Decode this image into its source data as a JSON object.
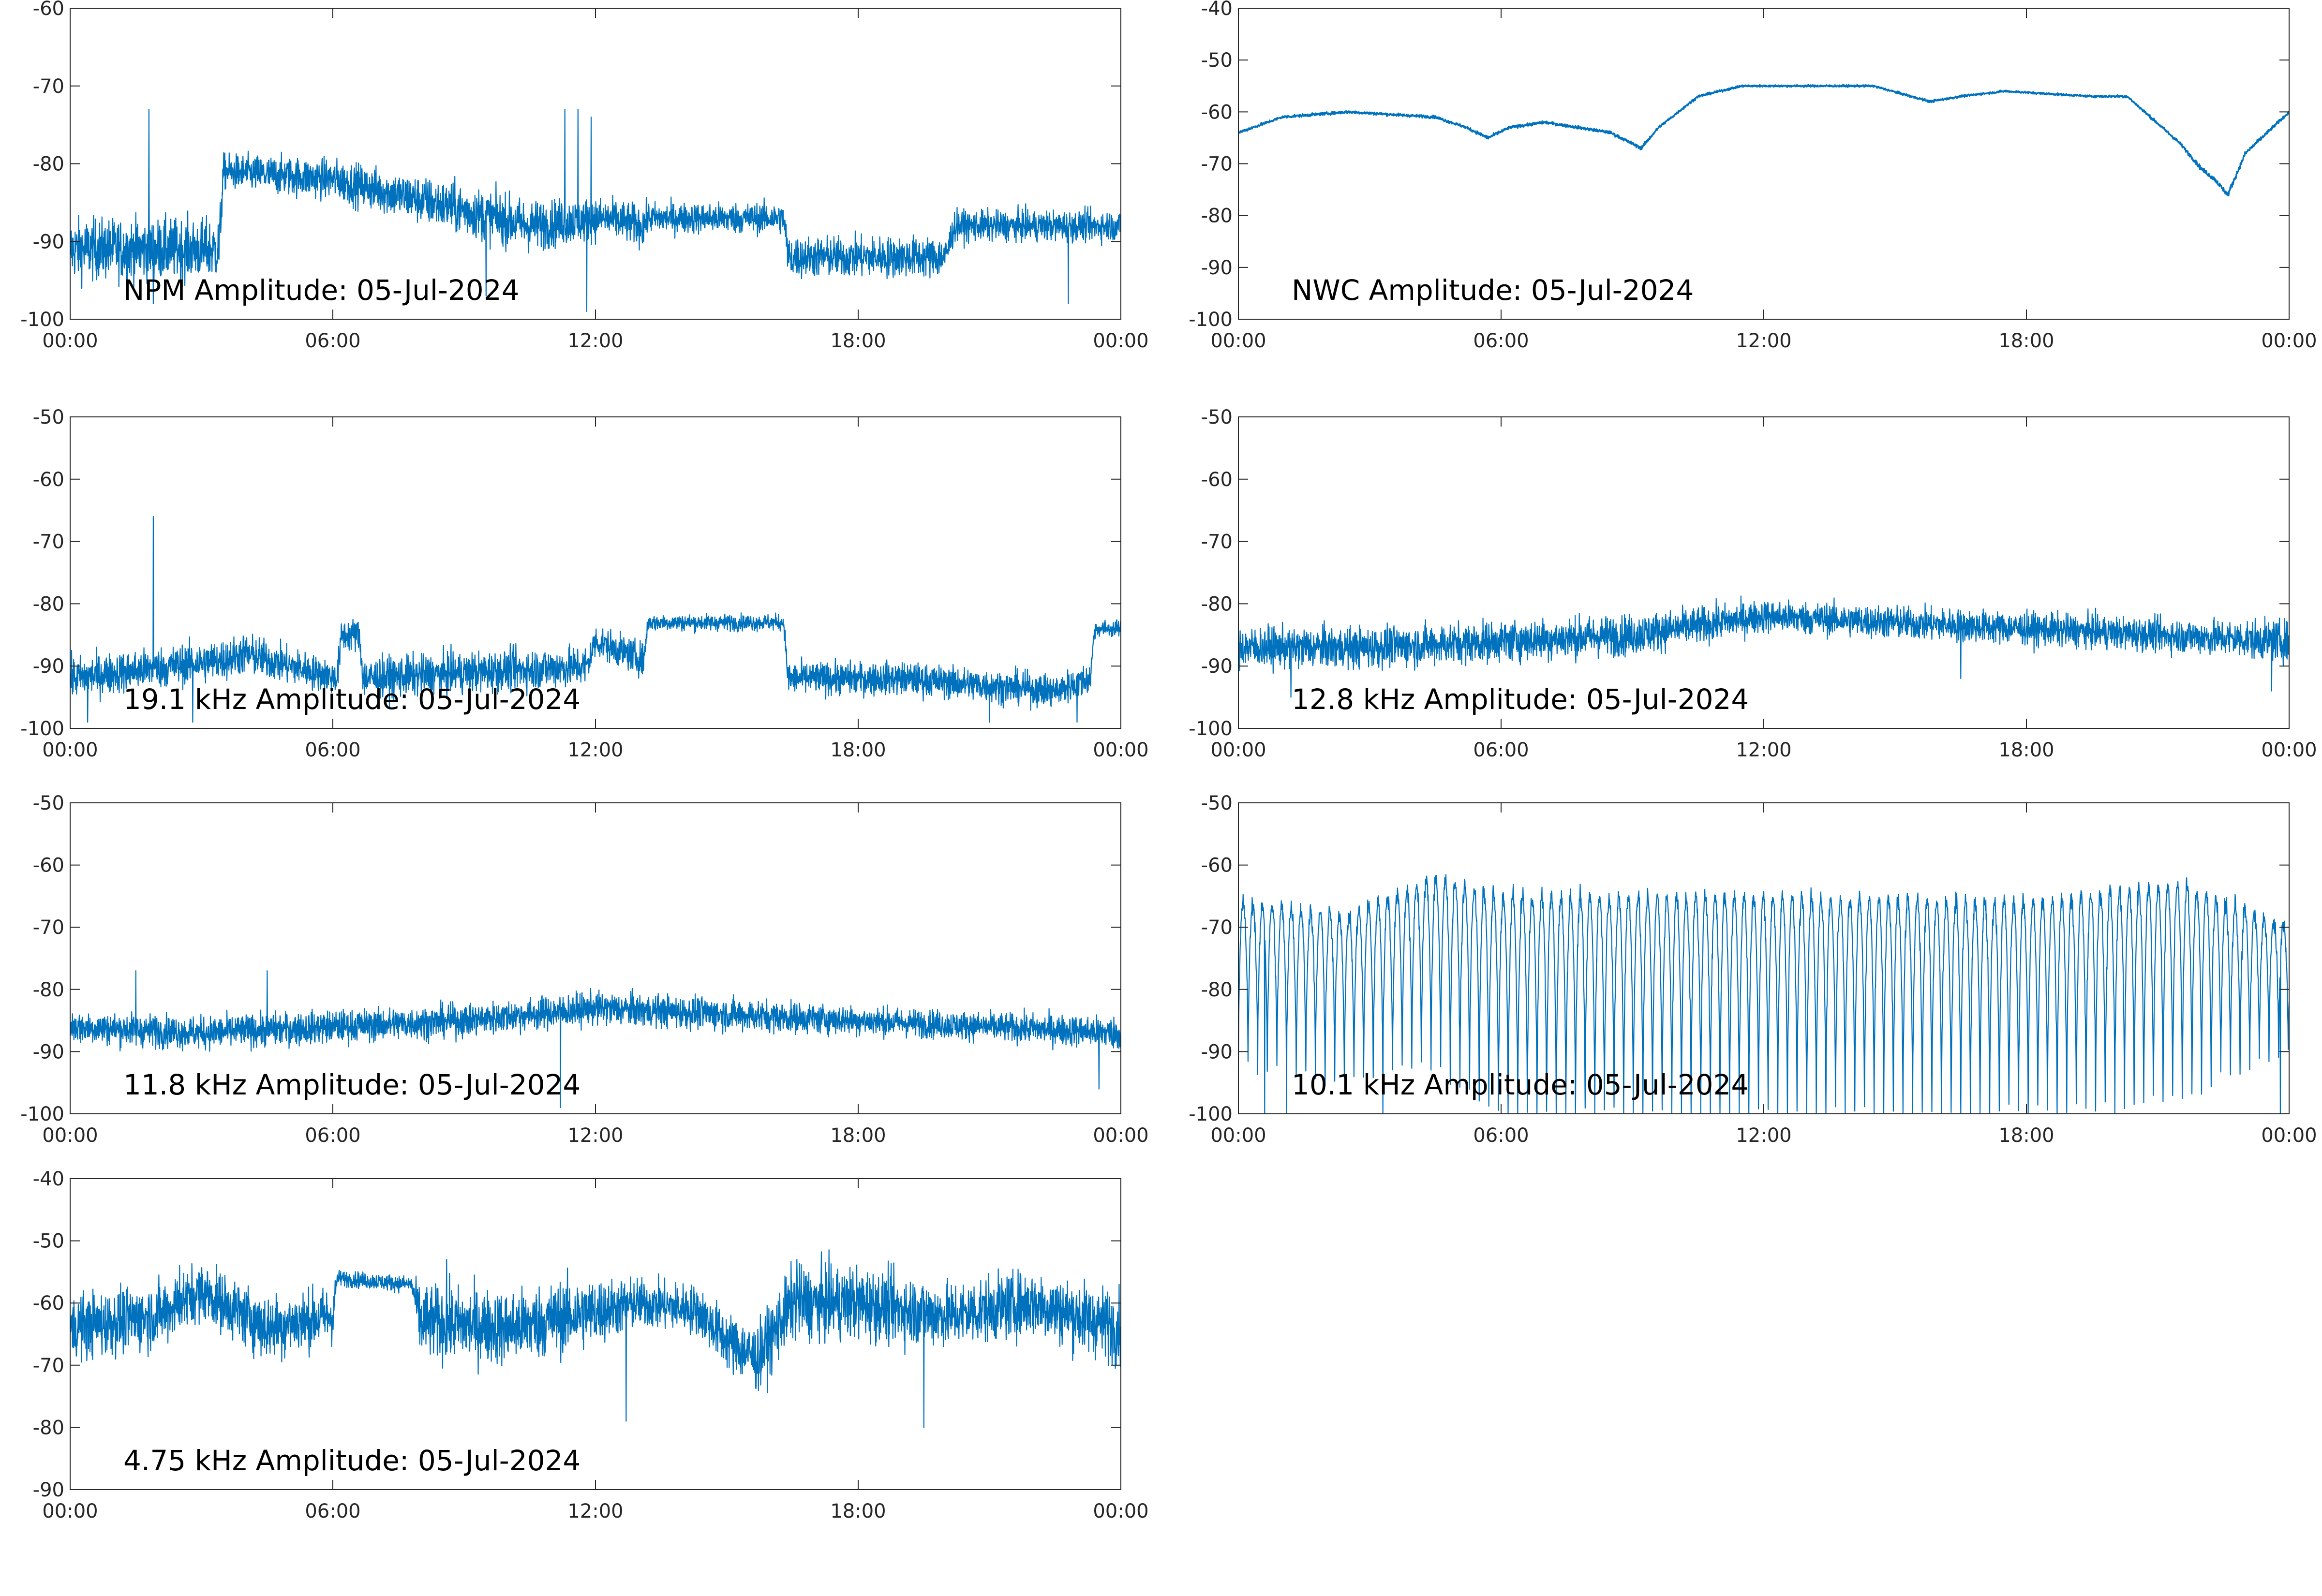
{
  "figure": {
    "background": "#ffffff",
    "line_color": "#0072BD",
    "axis_color": "#262626"
  },
  "chart_data": [
    {
      "type": "line",
      "title": "NPM Amplitude: 05-Jul-2024",
      "xlabel": "",
      "ylabel": "",
      "xlim": [
        0,
        24
      ],
      "xticks": [
        0,
        6,
        12,
        18,
        24
      ],
      "xtick_labels": [
        "00:00",
        "06:00",
        "12:00",
        "18:00",
        "00:00"
      ],
      "ylim": [
        -100,
        -60
      ],
      "yticks": [
        -100,
        -90,
        -80,
        -70,
        -60
      ],
      "ytick_labels": [
        "-100",
        "-90",
        "-80",
        "-70",
        "-60"
      ],
      "grid": false,
      "legend": "none",
      "series": [
        {
          "style": "noisy",
          "x": [
            0,
            1.5,
            3.4,
            3.5,
            6,
            9,
            10.5,
            12.2,
            13.1,
            13.2,
            16.3,
            16.4,
            20,
            20.2,
            24
          ],
          "y": [
            -91,
            -91,
            -91,
            -81,
            -82,
            -86,
            -88,
            -87,
            -88,
            -87,
            -87,
            -92,
            -92,
            -88,
            -88
          ],
          "band": [
            6,
            6,
            6,
            3.5,
            4,
            5,
            5,
            4,
            4,
            3,
            3,
            4,
            4,
            3,
            3
          ],
          "spikes": [
            [
              1.8,
              -73
            ],
            [
              11.3,
              -73
            ],
            [
              11.6,
              -73
            ],
            [
              11.9,
              -74
            ],
            [
              1.9,
              -98
            ],
            [
              9.5,
              -97
            ],
            [
              11.8,
              -99
            ],
            [
              22.8,
              -98
            ]
          ]
        }
      ]
    },
    {
      "type": "line",
      "title": "NWC Amplitude: 05-Jul-2024",
      "xlabel": "",
      "ylabel": "",
      "xlim": [
        0,
        24
      ],
      "xticks": [
        0,
        6,
        12,
        18,
        24
      ],
      "xtick_labels": [
        "00:00",
        "06:00",
        "12:00",
        "18:00",
        "00:00"
      ],
      "ylim": [
        -100,
        -40
      ],
      "yticks": [
        -100,
        -90,
        -80,
        -70,
        -60,
        -50,
        -40
      ],
      "ytick_labels": [
        "-100",
        "-90",
        "-80",
        "-70",
        "-60",
        "-50",
        "-40"
      ],
      "grid": false,
      "legend": "none",
      "series": [
        {
          "style": "smooth",
          "x": [
            0,
            1,
            2.5,
            4.5,
            5.2,
            5.7,
            6.2,
            7,
            8.5,
            9.2,
            9.6,
            10.5,
            11.5,
            13,
            14.5,
            15.8,
            16.5,
            17.5,
            19.5,
            20.3,
            21.5,
            22,
            22.3,
            22.6,
            23,
            24
          ],
          "y": [
            -64,
            -61,
            -60,
            -61,
            -63,
            -65,
            -63,
            -62,
            -64,
            -67,
            -63,
            -57,
            -55,
            -55,
            -55,
            -58,
            -57,
            -56,
            -57,
            -57,
            -66,
            -71,
            -73,
            -76,
            -68,
            -60
          ],
          "band": [
            0.8,
            0.8,
            0.8,
            0.8,
            0.8,
            1,
            0.8,
            0.8,
            0.8,
            1,
            0.8,
            0.7,
            0.6,
            0.6,
            0.6,
            0.7,
            0.6,
            0.6,
            0.6,
            0.7,
            1,
            1.2,
            1.2,
            1.5,
            1.2,
            0.8
          ],
          "spikes": []
        }
      ]
    },
    {
      "type": "line",
      "title": "19.1 kHz Amplitude: 05-Jul-2024",
      "xlabel": "",
      "ylabel": "",
      "xlim": [
        0,
        24
      ],
      "xticks": [
        0,
        6,
        12,
        18,
        24
      ],
      "xtick_labels": [
        "00:00",
        "06:00",
        "12:00",
        "18:00",
        "00:00"
      ],
      "ylim": [
        -100,
        -50
      ],
      "yticks": [
        -100,
        -90,
        -80,
        -70,
        -60,
        -50
      ],
      "ytick_labels": [
        "-100",
        "-90",
        "-80",
        "-70",
        "-60",
        "-50"
      ],
      "grid": false,
      "legend": "none",
      "series": [
        {
          "style": "noisy",
          "x": [
            0,
            3.5,
            4,
            6.1,
            6.2,
            6.6,
            6.7,
            11.8,
            12,
            13.1,
            13.2,
            16.3,
            16.4,
            19,
            22.5,
            23.3,
            23.4,
            24
          ],
          "y": [
            -92,
            -89,
            -88,
            -92,
            -85,
            -85,
            -92,
            -90,
            -86,
            -89,
            -83,
            -83,
            -92,
            -92,
            -94,
            -92,
            -84,
            -84
          ],
          "band": [
            5,
            5,
            5,
            4,
            4,
            4,
            5,
            5,
            4,
            4,
            2,
            2,
            4,
            4,
            4,
            4,
            2,
            2
          ],
          "spikes": [
            [
              1.9,
              -66
            ],
            [
              0.4,
              -99
            ],
            [
              2.8,
              -99
            ],
            [
              21,
              -99
            ],
            [
              23,
              -99
            ]
          ]
        }
      ]
    },
    {
      "type": "line",
      "title": "12.8 kHz Amplitude: 05-Jul-2024",
      "xlabel": "",
      "ylabel": "",
      "xlim": [
        0,
        24
      ],
      "xticks": [
        0,
        6,
        12,
        18,
        24
      ],
      "xtick_labels": [
        "00:00",
        "06:00",
        "12:00",
        "18:00",
        "00:00"
      ],
      "ylim": [
        -100,
        -50
      ],
      "yticks": [
        -100,
        -90,
        -80,
        -70,
        -60,
        -50
      ],
      "ytick_labels": [
        "-100",
        "-90",
        "-80",
        "-70",
        "-60",
        "-50"
      ],
      "grid": false,
      "legend": "none",
      "series": [
        {
          "style": "noisy",
          "x": [
            0,
            3,
            6,
            9,
            12,
            15,
            18,
            21,
            24
          ],
          "y": [
            -87,
            -87,
            -86,
            -85,
            -82,
            -83,
            -84,
            -85,
            -86
          ],
          "band": [
            5,
            5,
            5,
            5,
            4,
            4,
            4,
            4,
            5
          ],
          "spikes": [
            [
              1.2,
              -95
            ],
            [
              16.5,
              -92
            ],
            [
              23.6,
              -94
            ]
          ]
        }
      ]
    },
    {
      "type": "line",
      "title": "11.8 kHz Amplitude: 05-Jul-2024",
      "xlabel": "",
      "ylabel": "",
      "xlim": [
        0,
        24
      ],
      "xticks": [
        0,
        6,
        12,
        18,
        24
      ],
      "xtick_labels": [
        "00:00",
        "06:00",
        "12:00",
        "18:00",
        "00:00"
      ],
      "ylim": [
        -100,
        -50
      ],
      "yticks": [
        -100,
        -90,
        -80,
        -70,
        -60,
        -50
      ],
      "ytick_labels": [
        "-100",
        "-90",
        "-80",
        "-70",
        "-60",
        "-50"
      ],
      "grid": false,
      "legend": "none",
      "series": [
        {
          "style": "noisy",
          "x": [
            0,
            3,
            6,
            9,
            12,
            15,
            18,
            21,
            24
          ],
          "y": [
            -86,
            -87,
            -86,
            -85,
            -83,
            -84,
            -85,
            -86,
            -87
          ],
          "band": [
            4,
            4,
            4,
            4,
            4,
            4,
            3.5,
            3.5,
            4
          ],
          "spikes": [
            [
              1.5,
              -77
            ],
            [
              4.5,
              -77
            ],
            [
              11.2,
              -99
            ],
            [
              23.5,
              -96
            ]
          ]
        }
      ]
    },
    {
      "type": "line",
      "title": "10.1 kHz Amplitude: 05-Jul-2024",
      "xlabel": "",
      "ylabel": "",
      "xlim": [
        0,
        24
      ],
      "xticks": [
        0,
        6,
        12,
        18,
        24
      ],
      "xtick_labels": [
        "00:00",
        "06:00",
        "12:00",
        "18:00",
        "00:00"
      ],
      "ylim": [
        -100,
        -50
      ],
      "yticks": [
        -100,
        -90,
        -80,
        -70,
        -60,
        -50
      ],
      "ytick_labels": [
        "-100",
        "-90",
        "-80",
        "-70",
        "-60",
        "-50"
      ],
      "grid": false,
      "legend": "none",
      "series": [
        {
          "style": "oscillating",
          "x": [
            0,
            2.5,
            4.5,
            6,
            12,
            18,
            21.5,
            24
          ],
          "y_top": [
            -66,
            -68,
            -62,
            -65,
            -65,
            -66,
            -63,
            -70
          ],
          "y_bottom": [
            -92,
            -95,
            -92,
            -100,
            -100,
            -100,
            -98,
            -90
          ],
          "period": 0.22,
          "spikes": [
            [
              0.6,
              -100
            ],
            [
              1.1,
              -100
            ],
            [
              3.3,
              -100
            ],
            [
              23.8,
              -100
            ]
          ]
        }
      ]
    },
    {
      "type": "line",
      "title": "4.75 kHz Amplitude: 05-Jul-2024",
      "xlabel": "",
      "ylabel": "",
      "xlim": [
        0,
        24
      ],
      "xticks": [
        0,
        6,
        12,
        18,
        24
      ],
      "xtick_labels": [
        "00:00",
        "06:00",
        "12:00",
        "18:00",
        "00:00"
      ],
      "ylim": [
        -90,
        -40
      ],
      "yticks": [
        -90,
        -80,
        -70,
        -60,
        -50,
        -40
      ],
      "ytick_labels": [
        "-90",
        "-80",
        "-70",
        "-60",
        "-50",
        "-40"
      ],
      "grid": false,
      "legend": "none",
      "series": [
        {
          "style": "noisy",
          "x": [
            0,
            2,
            3,
            4.5,
            6,
            6.1,
            7.8,
            8,
            10,
            11.5,
            13,
            14.3,
            15,
            15.7,
            16.5,
            18,
            20,
            22,
            24
          ],
          "y": [
            -64,
            -62,
            -58,
            -64,
            -62,
            -56,
            -57,
            -63,
            -64,
            -62,
            -60,
            -61,
            -66,
            -69,
            -60,
            -60,
            -62,
            -60,
            -64
          ],
          "band": [
            8,
            8,
            7,
            8,
            7,
            2,
            2,
            9,
            9,
            9,
            6,
            6,
            7,
            8,
            9,
            9,
            8,
            8,
            9
          ],
          "spikes": [
            [
              2.5,
              -54
            ],
            [
              8.6,
              -53
            ],
            [
              16.6,
              -53
            ],
            [
              19.5,
              -80
            ],
            [
              12.7,
              -79
            ]
          ]
        }
      ]
    }
  ]
}
